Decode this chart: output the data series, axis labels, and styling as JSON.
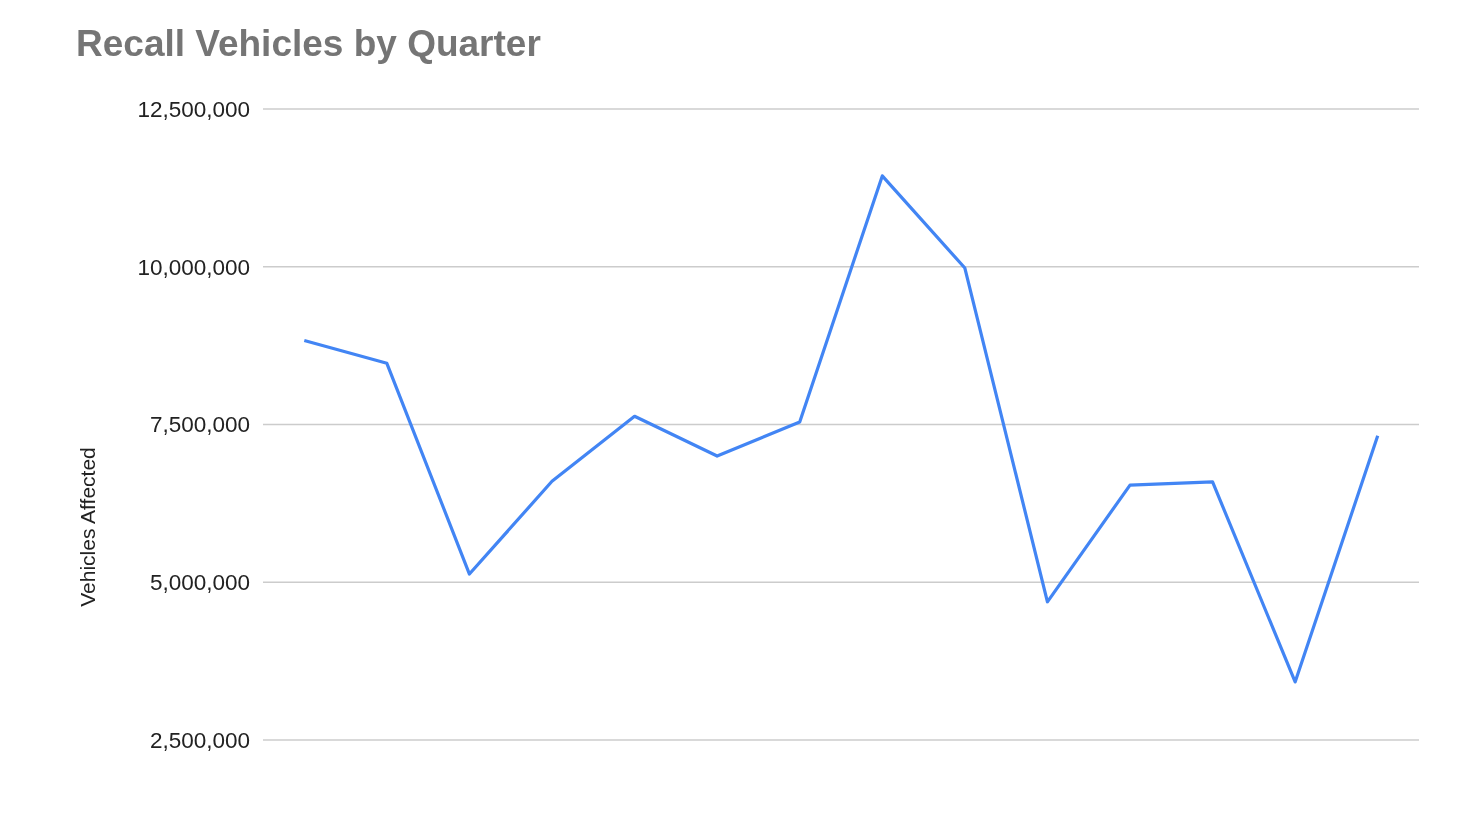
{
  "chart_data": {
    "type": "line",
    "title": "Recall Vehicles by Quarter",
    "ylabel": "Vehicles Affected",
    "categories": [
      null,
      null,
      null,
      null,
      null,
      null,
      null,
      null,
      null,
      null,
      null,
      null,
      null,
      null
    ],
    "series": [
      {
        "color": "#4285f4",
        "values": [
          8830000,
          8470000,
          5130000,
          6600000,
          7630000,
          7000000,
          7540000,
          11440000,
          9980000,
          4690000,
          6540000,
          6590000,
          3420000,
          7320000
        ]
      }
    ],
    "ylim": [
      2500000,
      12500000
    ],
    "yticks": [
      {
        "value": 2500000,
        "label": "2,500,000"
      },
      {
        "value": 5000000,
        "label": "5,000,000"
      },
      {
        "value": 7500000,
        "label": "7,500,000"
      },
      {
        "value": 10000000,
        "label": "10,000,000"
      },
      {
        "value": 12500000,
        "label": "12,500,000"
      }
    ],
    "grid": "y"
  }
}
